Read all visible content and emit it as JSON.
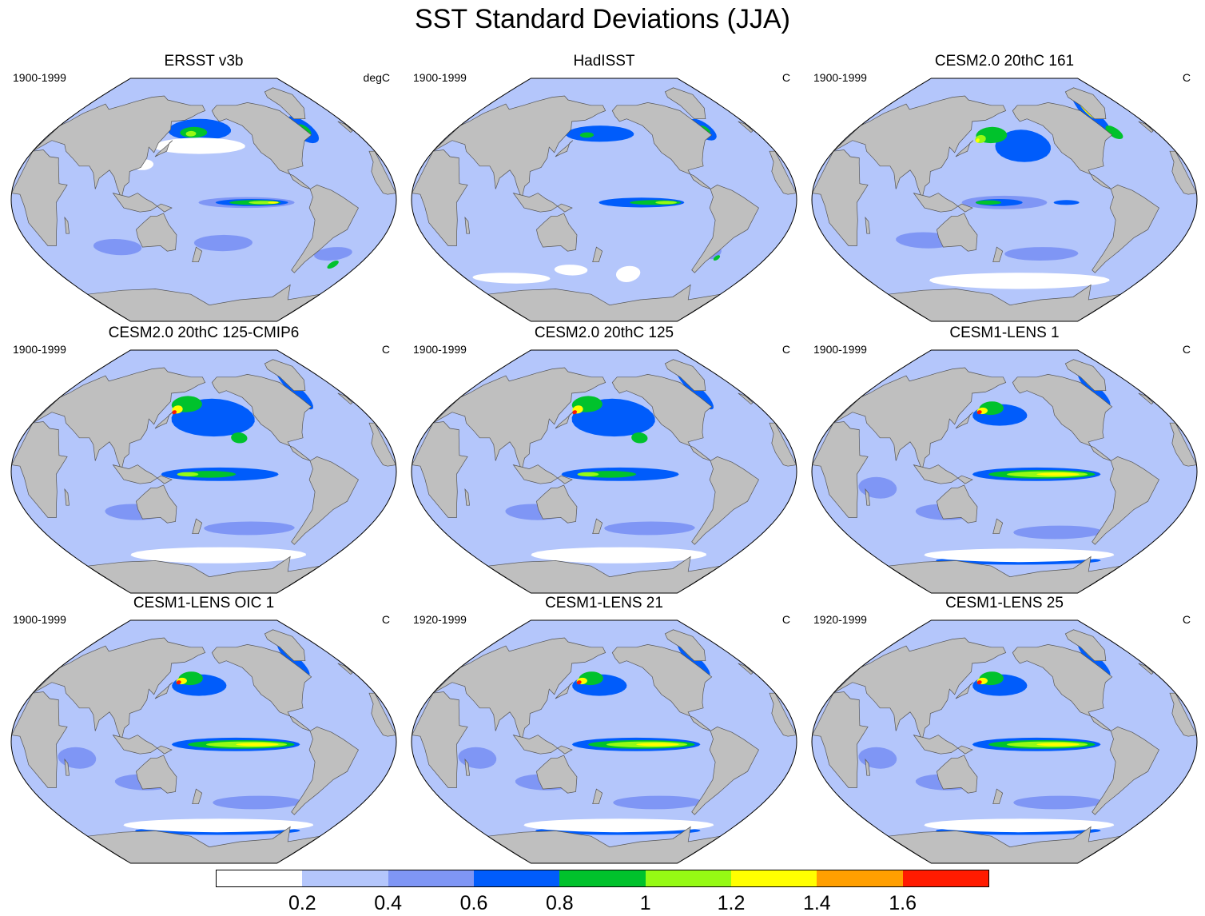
{
  "title": "SST Standard Deviations (JJA)",
  "panels": [
    {
      "title": "ERSST v3b",
      "period": "1900-1999",
      "units": "degC",
      "style": "obs"
    },
    {
      "title": "HadISST",
      "period": "1900-1999",
      "units": "C",
      "style": "obs2"
    },
    {
      "title": "CESM2.0 20thC 161",
      "period": "1900-1999",
      "units": "C",
      "style": "cesm2"
    },
    {
      "title": "CESM2.0 20thC 125-CMIP6",
      "period": "1900-1999",
      "units": "C",
      "style": "cesm2b"
    },
    {
      "title": "CESM2.0 20thC 125",
      "period": "1900-1999",
      "units": "C",
      "style": "cesm2b"
    },
    {
      "title": "CESM1-LENS 1",
      "period": "1900-1999",
      "units": "C",
      "style": "lens"
    },
    {
      "title": "CESM1-LENS OIC 1",
      "period": "1900-1999",
      "units": "C",
      "style": "lens"
    },
    {
      "title": "CESM1-LENS 21",
      "period": "1920-1999",
      "units": "C",
      "style": "lens"
    },
    {
      "title": "CESM1-LENS 25",
      "period": "1920-1999",
      "units": "C",
      "style": "lens"
    }
  ],
  "colorbar": {
    "colors": [
      "#ffffff",
      "#b4c6fb",
      "#7f96f5",
      "#005cfb",
      "#00c22c",
      "#96fa14",
      "#ffff00",
      "#ff9f00",
      "#ff1b00"
    ],
    "labels": [
      "0.2",
      "0.4",
      "0.6",
      "0.8",
      "1",
      "1.2",
      "1.4",
      "1.6"
    ]
  },
  "land_color": "#bfbfbf"
}
